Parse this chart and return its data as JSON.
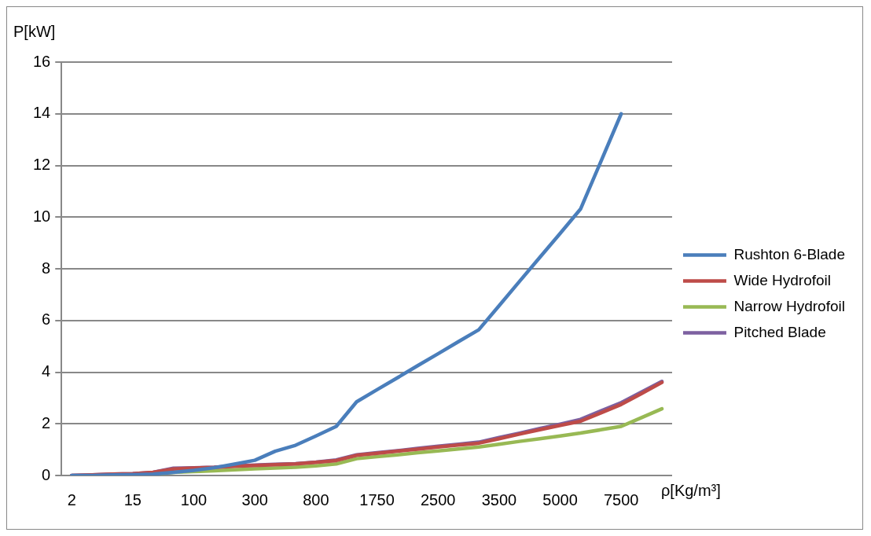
{
  "chart_data": {
    "type": "line",
    "xlabel": "ρ[Kg/m³]",
    "ylabel": "P[kW]",
    "categories": [
      "2",
      null,
      null,
      "15",
      null,
      null,
      "100",
      null,
      null,
      "300",
      null,
      null,
      "800",
      null,
      null,
      "1750",
      null,
      null,
      "2500",
      null,
      null,
      "3500",
      null,
      null,
      "5000",
      null,
      null,
      "7500",
      null,
      null
    ],
    "series": [
      {
        "name": "Rushton 6-Blade",
        "color": "#4a7ebb",
        "values": [
          0,
          0,
          0.02,
          0.03,
          0.05,
          0.12,
          0.2,
          0.3,
          0.44,
          0.59,
          0.94,
          1.17,
          1.53,
          1.9,
          2.85,
          3.32,
          3.78,
          4.25,
          4.71,
          5.18,
          5.64,
          6.57,
          7.51,
          8.44,
          9.37,
          10.31,
          12.15,
          14.0,
          null,
          null
        ]
      },
      {
        "name": "Wide Hydrofoil",
        "color": "#be4b48",
        "values": [
          0,
          0.02,
          0.05,
          0.07,
          0.12,
          0.25,
          0.29,
          0.31,
          0.36,
          0.39,
          0.42,
          0.45,
          0.51,
          0.58,
          0.78,
          0.86,
          0.94,
          1.02,
          1.1,
          1.18,
          1.25,
          1.42,
          1.6,
          1.77,
          1.94,
          2.1,
          2.42,
          2.75,
          3.17,
          3.6
        ]
      },
      {
        "name": "Narrow Hydrofoil",
        "color": "#98b954",
        "values": [
          null,
          null,
          null,
          null,
          0.05,
          0.12,
          0.15,
          0.18,
          0.22,
          0.26,
          0.29,
          0.32,
          0.37,
          0.45,
          0.65,
          0.73,
          0.8,
          0.88,
          0.95,
          1.03,
          1.1,
          1.21,
          1.32,
          1.42,
          1.53,
          1.64,
          1.77,
          1.9,
          2.24,
          2.58
        ]
      },
      {
        "name": "Pitched Blade",
        "color": "#7d60a0",
        "values": [
          0,
          0.02,
          0.05,
          0.07,
          0.12,
          0.28,
          0.3,
          0.32,
          0.37,
          0.4,
          0.43,
          0.46,
          0.52,
          0.6,
          0.8,
          0.88,
          0.96,
          1.05,
          1.13,
          1.21,
          1.29,
          1.47,
          1.64,
          1.82,
          1.99,
          2.17,
          2.5,
          2.82,
          3.23,
          3.64
        ]
      }
    ],
    "ylim": [
      0,
      16
    ],
    "yticks": [
      0,
      2,
      4,
      6,
      8,
      10,
      12,
      14,
      16
    ],
    "grid": "y",
    "legend": "right",
    "marker": "none",
    "line_style": "solid"
  }
}
